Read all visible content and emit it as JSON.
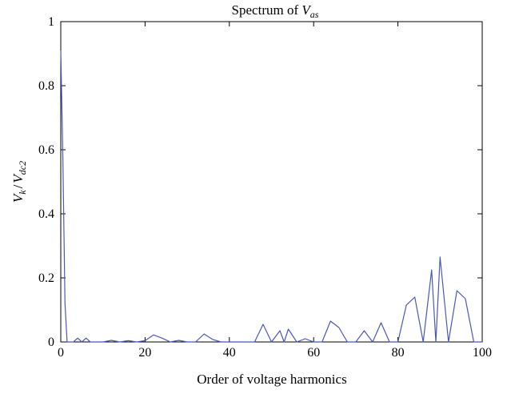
{
  "chart_data": {
    "type": "line",
    "title": {
      "prefix": "Spectrum of ",
      "var": "V",
      "sub": "as"
    },
    "xlabel": "Order of voltage harmonics",
    "ylabel": {
      "num": "V",
      "num_sub": "k",
      "sep": "/",
      "den": "V",
      "den_sub": "dc2"
    },
    "xlim": [
      0,
      100
    ],
    "ylim": [
      0,
      1
    ],
    "xticks": [
      0,
      20,
      40,
      60,
      80,
      100
    ],
    "yticks": [
      0,
      0.2,
      0.4,
      0.6,
      0.8,
      1
    ],
    "ytick_labels": [
      "0",
      "0.2",
      "0.4",
      "0.6",
      "0.8",
      "1"
    ],
    "grid": false,
    "line_color": "#4a58b8",
    "series": [
      {
        "x": [
          0,
          0.5,
          1,
          1.5,
          2,
          3,
          4,
          5,
          6,
          7,
          8,
          10,
          12,
          14,
          16,
          18,
          20,
          22,
          24,
          26,
          28,
          30,
          32,
          34,
          36,
          38,
          40,
          42,
          44,
          46,
          48,
          50,
          52,
          53,
          54,
          56,
          58,
          60,
          62,
          64,
          66,
          68,
          70,
          72,
          74,
          76,
          78,
          80,
          82,
          84,
          86,
          88,
          89,
          90,
          92,
          94,
          96,
          98,
          100
        ],
        "y": [
          0.91,
          0.57,
          0.12,
          0.0,
          0.0,
          0.0,
          0.012,
          0.0,
          0.012,
          0.0,
          0.0,
          0.0,
          0.005,
          0.0,
          0.004,
          0.0,
          0.004,
          0.022,
          0.012,
          0.0,
          0.005,
          0.0,
          0.0,
          0.025,
          0.008,
          0.0,
          0.0,
          0.0,
          0.0,
          0.0,
          0.055,
          0.0,
          0.035,
          0.0,
          0.04,
          0.0,
          0.01,
          0.0,
          0.0,
          0.065,
          0.045,
          0.0,
          0.0,
          0.035,
          0.0,
          0.06,
          0.0,
          0.0,
          0.115,
          0.14,
          0.0,
          0.225,
          0.0,
          0.265,
          0.0,
          0.16,
          0.135,
          0.0,
          0.0
        ]
      }
    ]
  }
}
